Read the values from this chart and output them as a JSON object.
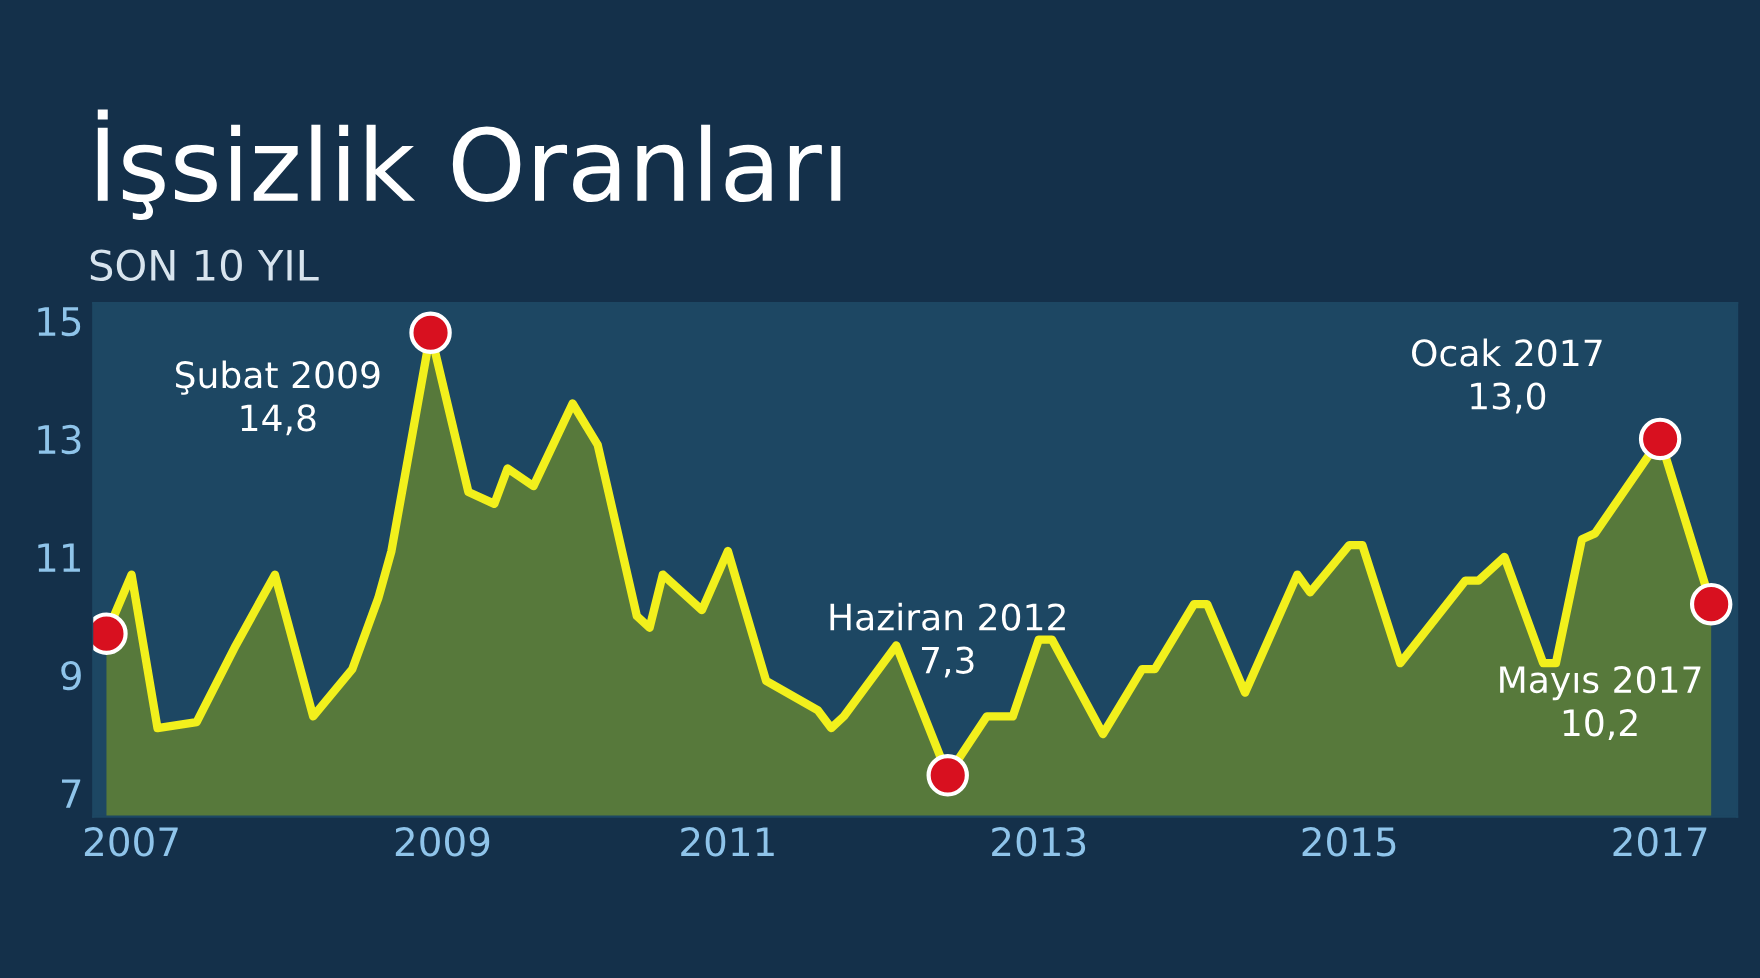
{
  "chart_data": {
    "type": "area",
    "title": "İşsizlik Oranları",
    "subtitle": "SON 10 YIL",
    "series": [
      {
        "color": "#f2f01c",
        "x": [
          "2007-01",
          "2007-03",
          "2007-05",
          "2007-08",
          "2007-11",
          "2008-02",
          "2008-05",
          "2008-08",
          "2008-10",
          "2008-11",
          "2009-02",
          "2009-05",
          "2009-07",
          "2009-08",
          "2009-10",
          "2010-01",
          "2010-03",
          "2010-06",
          "2010-07",
          "2010-08",
          "2010-11",
          "2011-01",
          "2011-04",
          "2011-08",
          "2011-09",
          "2011-10",
          "2012-02",
          "2012-06",
          "2012-09",
          "2012-11",
          "2013-01",
          "2013-02",
          "2013-06",
          "2013-09",
          "2013-10",
          "2014-01",
          "2014-02",
          "2014-05",
          "2014-09",
          "2014-10",
          "2015-01",
          "2015-02",
          "2015-05",
          "2015-10",
          "2015-11",
          "2016-01",
          "2016-04",
          "2016-05",
          "2016-07",
          "2016-08",
          "2017-01",
          "2017-05"
        ],
        "values": [
          9.7,
          10.7,
          8.1,
          8.2,
          9.5,
          10.7,
          8.3,
          9.1,
          10.3,
          11.1,
          14.8,
          12.1,
          11.9,
          12.5,
          12.2,
          13.6,
          12.9,
          10.0,
          9.8,
          10.7,
          10.1,
          11.1,
          8.9,
          8.4,
          8.1,
          8.3,
          9.5,
          7.3,
          8.3,
          8.3,
          9.6,
          9.6,
          8.0,
          9.1,
          9.1,
          10.2,
          10.2,
          8.7,
          10.7,
          10.4,
          11.2,
          11.2,
          9.2,
          10.6,
          10.6,
          11.0,
          9.2,
          9.2,
          11.3,
          11.4,
          13.0,
          10.2
        ]
      },
      {
        "type": "scatter",
        "color": "#d8101f",
        "marker": "circle",
        "x": [
          "2007-01",
          "2009-02",
          "2012-06",
          "2017-01",
          "2017-05"
        ],
        "values": [
          9.7,
          14.8,
          7.3,
          13.0,
          10.2
        ]
      }
    ],
    "annotations": [
      {
        "text": "Şubat 2009\n14,8",
        "x": "2009-02",
        "y": 14.8
      },
      {
        "text": "Haziran 2012\n7,3",
        "x": "2012-06",
        "y": 7.3
      },
      {
        "text": "Ocak 2017\n13,0",
        "x": "2017-01",
        "y": 13.0
      },
      {
        "text": "Mayıs 2017\n10,2",
        "x": "2017-05",
        "y": 10.2
      }
    ],
    "xlim": [
      "2006-12",
      "2017-07"
    ],
    "xticks": [
      {
        "value": "2007-03",
        "label": "2007"
      },
      {
        "value": "2009-03",
        "label": "2009"
      },
      {
        "value": "2011-01",
        "label": "2011"
      },
      {
        "value": "2013-01",
        "label": "2013"
      },
      {
        "value": "2015-01",
        "label": "2015"
      },
      {
        "value": "2017-01",
        "label": "2017"
      }
    ],
    "ylim": [
      6.6,
      15.3
    ],
    "yticks": [
      7,
      9,
      11,
      13,
      15
    ],
    "grid": false
  }
}
